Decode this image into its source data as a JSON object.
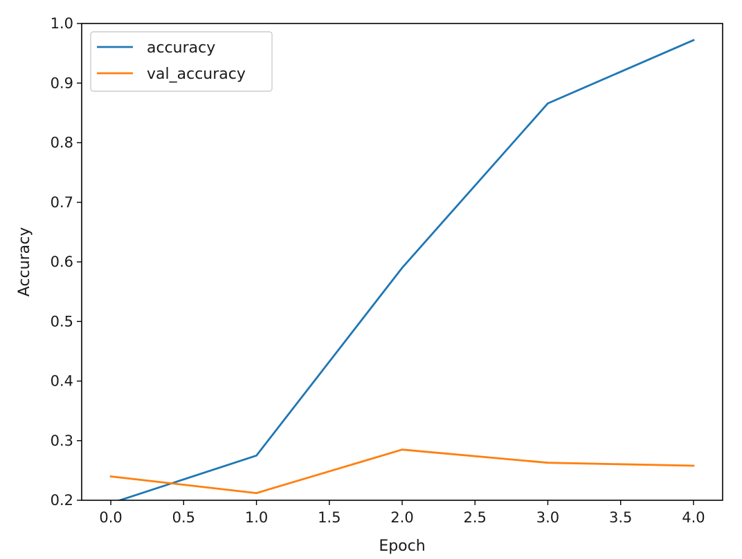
{
  "chart_data": {
    "type": "line",
    "title": "",
    "xlabel": "Epoch",
    "ylabel": "Accuracy",
    "x": [
      0,
      1,
      2,
      3,
      4
    ],
    "xlim": [
      -0.2,
      4.2
    ],
    "ylim": [
      0.2,
      1.0
    ],
    "xticks": [
      "0.0",
      "0.5",
      "1.0",
      "1.5",
      "2.0",
      "2.5",
      "3.0",
      "3.5",
      "4.0"
    ],
    "yticks": [
      "0.2",
      "0.3",
      "0.4",
      "0.5",
      "0.6",
      "0.7",
      "0.8",
      "0.9",
      "1.0"
    ],
    "grid": false,
    "legend_position": "top-left",
    "series": [
      {
        "name": "accuracy",
        "color": "#1f77b4",
        "values": [
          0.195,
          0.275,
          0.59,
          0.866,
          0.972
        ]
      },
      {
        "name": "val_accuracy",
        "color": "#ff7f0e",
        "values": [
          0.24,
          0.212,
          0.285,
          0.263,
          0.258
        ]
      }
    ]
  }
}
